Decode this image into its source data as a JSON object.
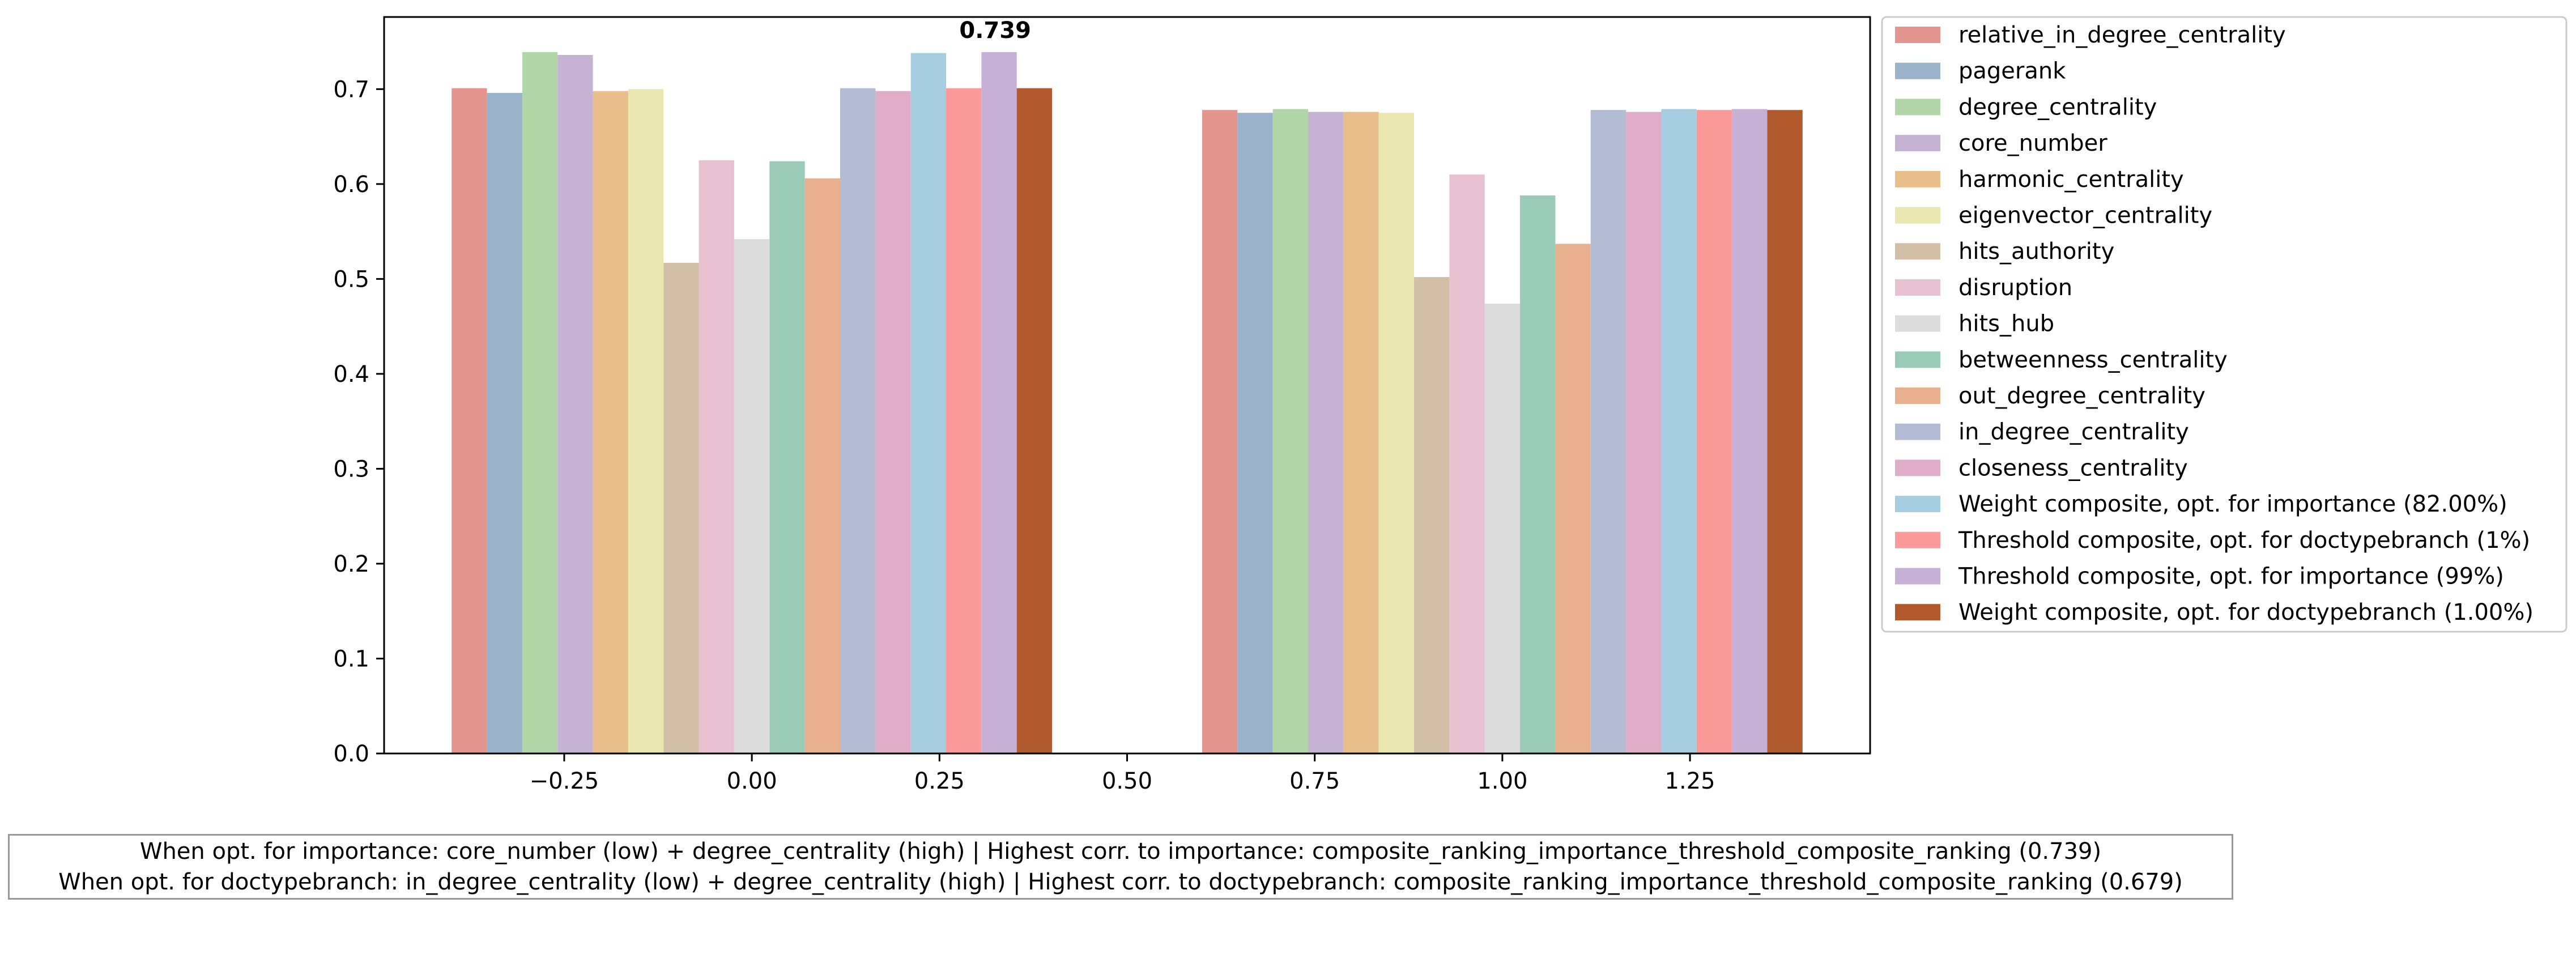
{
  "chart_data": {
    "type": "bar",
    "title": "",
    "xlabel": "",
    "ylabel": "",
    "group_x": [
      0.0,
      1.0
    ],
    "xlim": [
      -0.49,
      1.49
    ],
    "ylim": [
      0,
      0.776
    ],
    "x_ticks": [
      -0.25,
      0.0,
      0.25,
      0.5,
      0.75,
      1.0,
      1.25
    ],
    "x_tick_labels": [
      "−0.25",
      "0.00",
      "0.25",
      "0.50",
      "0.75",
      "1.00",
      "1.25"
    ],
    "y_ticks": [
      0.0,
      0.1,
      0.2,
      0.3,
      0.4,
      0.5,
      0.6,
      0.7
    ],
    "y_tick_labels": [
      "0.0",
      "0.1",
      "0.2",
      "0.3",
      "0.4",
      "0.5",
      "0.6",
      "0.7"
    ],
    "grid": false,
    "legend_position": "outside-right",
    "series": [
      {
        "name": "relative_in_degree_centrality",
        "color": "#e3958e",
        "values": [
          0.701,
          0.678
        ]
      },
      {
        "name": "pagerank",
        "color": "#9ab3cb",
        "values": [
          0.696,
          0.675
        ]
      },
      {
        "name": "degree_centrality",
        "color": "#b2d6a7",
        "values": [
          0.739,
          0.679
        ]
      },
      {
        "name": "core_number",
        "color": "#c6b2d3",
        "values": [
          0.736,
          0.676
        ]
      },
      {
        "name": "harmonic_centrality",
        "color": "#e8be8a",
        "values": [
          0.698,
          0.676
        ]
      },
      {
        "name": "eigenvector_centrality",
        "color": "#e9e7af",
        "values": [
          0.7,
          0.675
        ]
      },
      {
        "name": "hits_authority",
        "color": "#d1c0a6",
        "values": [
          0.517,
          0.502
        ]
      },
      {
        "name": "disruption",
        "color": "#e7c1cf",
        "values": [
          0.625,
          0.61
        ]
      },
      {
        "name": "hits_hub",
        "color": "#dcdcdc",
        "values": [
          0.542,
          0.474
        ]
      },
      {
        "name": "betweenness_centrality",
        "color": "#9acbb6",
        "values": [
          0.624,
          0.588
        ]
      },
      {
        "name": "out_degree_centrality",
        "color": "#e8b08e",
        "values": [
          0.606,
          0.537
        ]
      },
      {
        "name": "in_degree_centrality",
        "color": "#b3bcd2",
        "values": [
          0.701,
          0.678
        ]
      },
      {
        "name": "closeness_centrality",
        "color": "#dfadc8",
        "values": [
          0.698,
          0.676
        ]
      },
      {
        "name": "Weight composite, opt. for importance (82.00%)",
        "color": "#a6cde0",
        "values": [
          0.738,
          0.679
        ]
      },
      {
        "name": "Threshold composite, opt. for doctypebranch (1%)",
        "color": "#fa9a99",
        "values": [
          0.701,
          0.678
        ]
      },
      {
        "name": "Threshold composite, opt. for importance (99%)",
        "color": "#c6b0d5",
        "values": [
          0.739,
          0.679
        ]
      },
      {
        "name": "Weight composite, opt. for doctypebranch (1.00%)",
        "color": "#b15a2d",
        "values": [
          0.701,
          0.678
        ]
      }
    ],
    "annotations": [
      {
        "text": "0.739",
        "x": 0.328,
        "y": 0.739
      }
    ]
  },
  "footer": {
    "line1": "When opt. for importance: core_number (low) + degree_centrality (high) | Highest corr. to importance: composite_ranking_importance_threshold_composite_ranking (0.739)",
    "line2": "When opt. for doctypebranch: in_degree_centrality (low) + degree_centrality (high) | Highest corr. to doctypebranch: composite_ranking_importance_threshold_composite_ranking (0.679)"
  }
}
